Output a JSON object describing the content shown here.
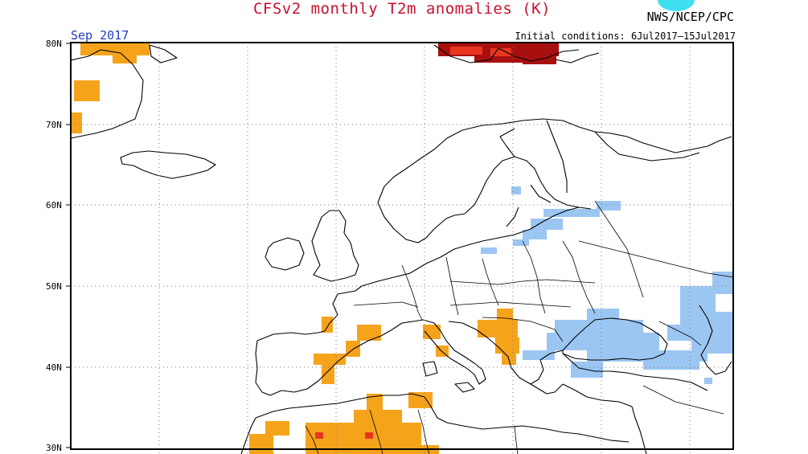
{
  "header": {
    "title": "CFSv2 monthly T2m anomalies (K)",
    "agency": "NWS/NCEP/CPC",
    "month": "Sep 2017",
    "initial_conditions": "Initial conditions: 6Jul2017–15Jul2017"
  },
  "axis": {
    "lat_labels": [
      "80N",
      "70N",
      "60N",
      "50N",
      "40N",
      "30N"
    ]
  },
  "colors": {
    "warm_light": "#f6a31c",
    "warm_mid": "#e8361e",
    "warm_dark": "#a81010",
    "cool_light": "#9cc6f2",
    "frame": "#000000",
    "grid": "#777777",
    "title": "#c8102e"
  },
  "map_layers": {
    "land_outline": "coastlines and country borders of Europe, North Africa, Greenland, Iceland and Svalbard",
    "anomaly_regions": [
      {
        "name": "greenland-warm",
        "category": "warm_light"
      },
      {
        "name": "svalbard-warm",
        "category": "warm_dark"
      },
      {
        "name": "iberia-warm",
        "category": "warm_light"
      },
      {
        "name": "italy-warm",
        "category": "warm_light"
      },
      {
        "name": "balkans-warm",
        "category": "warm_light"
      },
      {
        "name": "north-africa-warm",
        "category": "warm_light"
      },
      {
        "name": "baltic-cool",
        "category": "cool_light"
      },
      {
        "name": "black-sea-cool",
        "category": "cool_light"
      },
      {
        "name": "caspian-cool",
        "category": "cool_light"
      }
    ]
  }
}
